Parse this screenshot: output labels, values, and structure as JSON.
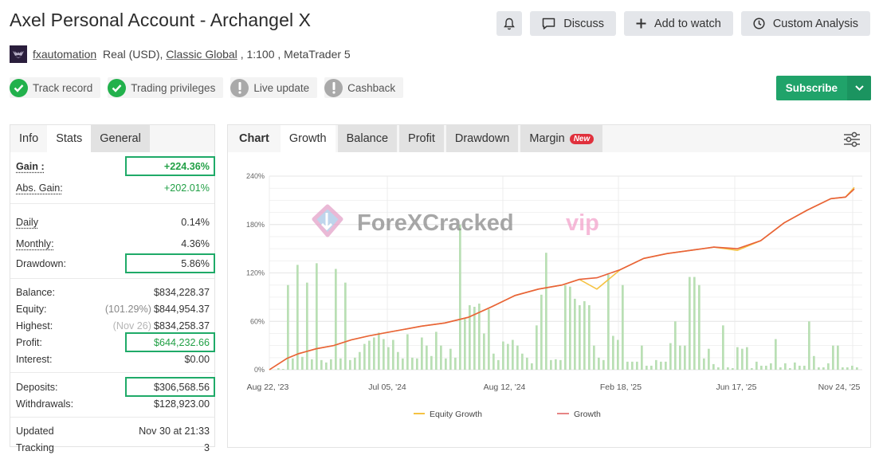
{
  "header": {
    "title": "Axel Personal Account - Archangel X",
    "owner": "fxautomation",
    "account_type": "Real (USD),",
    "broker": "Classic Global",
    "leverage": ", 1:100 ,",
    "platform": "MetaTrader 5"
  },
  "badges": [
    {
      "label": "Track record",
      "status": "ok"
    },
    {
      "label": "Trading privileges",
      "status": "ok"
    },
    {
      "label": "Live update",
      "status": "warn"
    },
    {
      "label": "Cashback",
      "status": "warn"
    }
  ],
  "actions": {
    "discuss": "Discuss",
    "add_to_watch": "Add to watch",
    "custom_analysis": "Custom Analysis",
    "subscribe": "Subscribe"
  },
  "stats_tabs": [
    "Info",
    "Stats",
    "General"
  ],
  "stats": {
    "gain": {
      "label": "Gain :",
      "value": "+224.36%"
    },
    "abs_gain": {
      "label": "Abs. Gain:",
      "value": "+202.01%"
    },
    "daily": {
      "label": "Daily",
      "value": "0.14%"
    },
    "monthly": {
      "label": "Monthly:",
      "value": "4.36%"
    },
    "drawdown": {
      "label": "Drawdown:",
      "value": "5.86%"
    },
    "balance": {
      "label": "Balance:",
      "value": "$834,228.37"
    },
    "equity": {
      "label": "Equity:",
      "note": "(101.29%)",
      "value": "$844,954.37"
    },
    "highest": {
      "label": "Highest:",
      "note": "(Nov 26)",
      "value": "$834,258.37"
    },
    "profit": {
      "label": "Profit:",
      "value": "$644,232.66"
    },
    "interest": {
      "label": "Interest:",
      "value": "$0.00"
    },
    "deposits": {
      "label": "Deposits:",
      "value": "$306,568.56"
    },
    "withdrawals": {
      "label": "Withdrawals:",
      "value": "$128,923.00"
    },
    "updated": {
      "label": "Updated",
      "value": "Nov 30 at 21:33"
    },
    "tracking": {
      "label": "Tracking",
      "value": "3"
    }
  },
  "chart_tabs": {
    "label": "Chart",
    "items": [
      "Growth",
      "Balance",
      "Profit",
      "Drawdown",
      "Margin"
    ],
    "new_badge": "New"
  },
  "watermark": {
    "main": "ForeXCracked",
    "accent": "vip"
  },
  "colors": {
    "accent_green": "#20a36a",
    "positive": "#22a046",
    "growth_line": "#e8613a",
    "equity_line": "#f5c242",
    "bars": "#b9dfb4"
  },
  "chart_data": {
    "type": "line",
    "title": "Growth",
    "xlabel": "",
    "ylabel": "",
    "ylim": [
      0,
      240
    ],
    "yticks": [
      "0%",
      "60%",
      "120%",
      "180%",
      "240%"
    ],
    "xticks": [
      "Aug 22, '23",
      "Jul 05, '24",
      "Aug 12, '24",
      "Feb 18, '25",
      "Jun 17, '25",
      "Nov 24, '25"
    ],
    "legend": [
      "Equity Growth",
      "Growth"
    ],
    "grid": true,
    "series": [
      {
        "name": "Growth",
        "x_frac": [
          0,
          0.03,
          0.05,
          0.08,
          0.11,
          0.14,
          0.17,
          0.2,
          0.23,
          0.26,
          0.3,
          0.34,
          0.38,
          0.42,
          0.46,
          0.5,
          0.53,
          0.56,
          0.6,
          0.64,
          0.68,
          0.72,
          0.76,
          0.8,
          0.84,
          0.88,
          0.92,
          0.96,
          0.985,
          1.0
        ],
        "values": [
          0,
          14,
          20,
          26,
          30,
          37,
          42,
          46,
          50,
          54,
          58,
          65,
          78,
          92,
          100,
          105,
          112,
          114,
          124,
          138,
          144,
          148,
          152,
          150,
          160,
          182,
          198,
          212,
          214,
          224
        ]
      },
      {
        "name": "Equity Growth",
        "x_frac": [
          0,
          0.03,
          0.05,
          0.08,
          0.11,
          0.14,
          0.17,
          0.2,
          0.23,
          0.26,
          0.3,
          0.34,
          0.38,
          0.42,
          0.46,
          0.5,
          0.53,
          0.56,
          0.6,
          0.64,
          0.68,
          0.72,
          0.76,
          0.8,
          0.84,
          0.88,
          0.92,
          0.96,
          0.985,
          1.0
        ],
        "values": [
          0,
          14,
          20,
          26,
          30,
          37,
          42,
          46,
          50,
          54,
          58,
          65,
          78,
          92,
          100,
          105,
          112,
          100,
          124,
          138,
          144,
          148,
          152,
          148,
          160,
          182,
          198,
          212,
          214,
          226
        ]
      },
      {
        "name": "Monthly bars",
        "type": "bar",
        "values": [
          2,
          1,
          105,
          14,
          130,
          16,
          108,
          13,
          132,
          12,
          9,
          13,
          125,
          14,
          108,
          12,
          15,
          22,
          32,
          36,
          40,
          46,
          38,
          28,
          37,
          22,
          14,
          44,
          15,
          14,
          40,
          30,
          17,
          47,
          30,
          14,
          26,
          15,
          180,
          63,
          80,
          78,
          82,
          45,
          75,
          20,
          12,
          35,
          32,
          37,
          30,
          20,
          15,
          8,
          55,
          93,
          145,
          12,
          13,
          12,
          105,
          103,
          88,
          80,
          85,
          80,
          30,
          15,
          12,
          118,
          42,
          37,
          105,
          10,
          10,
          10,
          30,
          5,
          5,
          12,
          10,
          10,
          33,
          60,
          30,
          30,
          115,
          115,
          105,
          14,
          26,
          7,
          3,
          55,
          3,
          2,
          28,
          26,
          28,
          2,
          10,
          5,
          5,
          8,
          38,
          3,
          8,
          2,
          9,
          5,
          5,
          60,
          17,
          3,
          3,
          8,
          30,
          30,
          3,
          3,
          5,
          3
        ]
      }
    ]
  }
}
